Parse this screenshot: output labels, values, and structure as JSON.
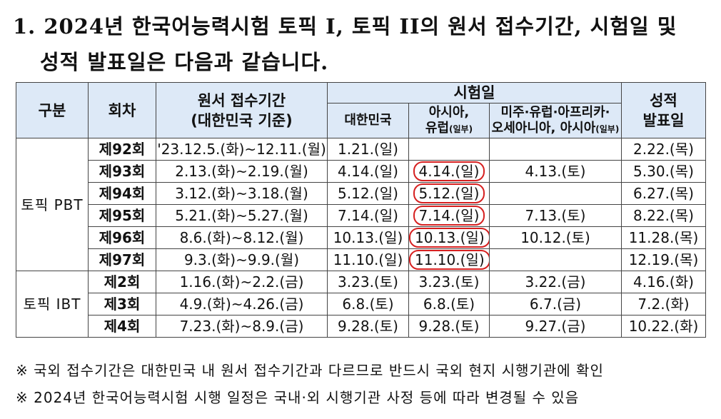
{
  "heading": {
    "line1": "1. 2024년 한국어능력시험 토픽 I, 토픽 II의 원서 접수기간, 시험일 및",
    "line2": "성적 발표일은 다음과 같습니다."
  },
  "table": {
    "headers": {
      "category": "구분",
      "round": "회차",
      "application_line1": "원서 접수기간",
      "application_line2": "(대한민국 기준)",
      "exam_date": "시험일",
      "korea": "대한민국",
      "asia_europe_line1": "아시아,",
      "asia_europe_line2": "유럽",
      "asia_europe_note": "(일부)",
      "americas_line1": "미주·유럽·아프리카·",
      "americas_line2": "오세아니아, 아시아",
      "americas_note": "(일부)",
      "result_line1": "성적",
      "result_line2": "발표일"
    },
    "groups": [
      {
        "category": "토픽 PBT",
        "rows": [
          {
            "round": "제92회",
            "application": "'23.12.5.(화)~12.11.(월)",
            "korea": "1.21.(일)",
            "asia_europe": "",
            "americas": "",
            "result": "2.22.(목)",
            "circled": false
          },
          {
            "round": "제93회",
            "application": "2.13.(화)~2.19.(월)",
            "korea": "4.14.(일)",
            "asia_europe": "4.14.(일)",
            "americas": "4.13.(토)",
            "result": "5.30.(목)",
            "circled": true
          },
          {
            "round": "제94회",
            "application": "3.12.(화)~3.18.(월)",
            "korea": "5.12.(일)",
            "asia_europe": "5.12.(일)",
            "americas": "",
            "result": "6.27.(목)",
            "circled": true
          },
          {
            "round": "제95회",
            "application": "5.21.(화)~5.27.(월)",
            "korea": "7.14.(일)",
            "asia_europe": "7.14.(일)",
            "americas": "7.13.(토)",
            "result": "8.22.(목)",
            "circled": true
          },
          {
            "round": "제96회",
            "application": "8.6.(화)~8.12.(월)",
            "korea": "10.13.(일)",
            "asia_europe": "10.13.(일)",
            "americas": "10.12.(토)",
            "result": "11.28.(목)",
            "circled": true
          },
          {
            "round": "제97회",
            "application": "9.3.(화)~9.9.(월)",
            "korea": "11.10.(일)",
            "asia_europe": "11.10.(일)",
            "americas": "",
            "result": "12.19.(목)",
            "circled": true
          }
        ]
      },
      {
        "category": "토픽 IBT",
        "rows": [
          {
            "round": "제2회",
            "application": "1.16.(화)~2.2.(금)",
            "korea": "3.23.(토)",
            "asia_europe": "3.23.(토)",
            "americas": "3.22.(금)",
            "result": "4.16.(화)",
            "circled": false
          },
          {
            "round": "제3회",
            "application": "4.9.(화)~4.26.(금)",
            "korea": "6.8.(토)",
            "asia_europe": "6.8.(토)",
            "americas": "6.7.(금)",
            "result": "7.2.(화)",
            "circled": false
          },
          {
            "round": "제4회",
            "application": "7.23.(화)~8.9.(금)",
            "korea": "9.28.(토)",
            "asia_europe": "9.28.(토)",
            "americas": "9.27.(금)",
            "result": "10.22.(화)",
            "circled": false
          }
        ]
      }
    ],
    "annotation_color": "#d62020",
    "header_bg": "#dde9f7"
  },
  "notes": [
    "※ 국외 접수기간은 대한민국 내 원서 접수기간과 다르므로 반드시 국외 현지 시행기관에 확인",
    "※ 2024년 한국어능력시험 시행 일정은 국내·외 시행기관 사정 등에 따라 변경될 수 있음"
  ]
}
